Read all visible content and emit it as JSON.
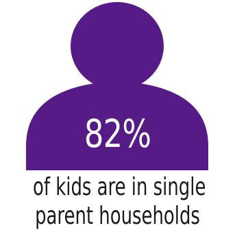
{
  "colors": {
    "accent": "#571b87",
    "text": "#1a1a1a",
    "background": "#ffffff"
  },
  "graphic": {
    "icon": "person-icon"
  },
  "stat": {
    "value": "82%"
  },
  "caption": {
    "line1": "of kids are in single",
    "line2": "parent households"
  }
}
